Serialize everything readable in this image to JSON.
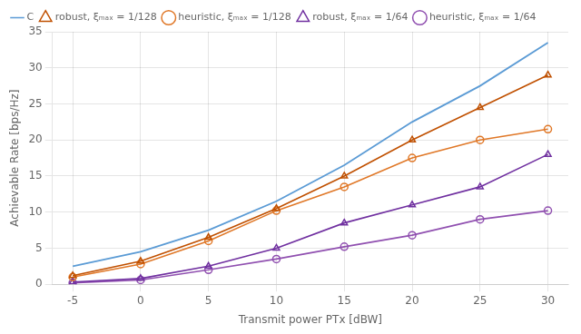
{
  "chart_data": {
    "type": "line",
    "xlabel": "Transmit power PTx [dBW]",
    "ylabel": "Achievable Rate [bps/Hz]",
    "x": [
      -5,
      0,
      5,
      10,
      15,
      20,
      25,
      30
    ],
    "series": [
      {
        "name": "C",
        "color": "#5B9BD5",
        "values": [
          2.5,
          4.5,
          7.5,
          11.5,
          16.5,
          22.5,
          27.5,
          33.5
        ]
      },
      {
        "name": "robust, ξₘₐₓ = 1/128",
        "color": "#C05000",
        "marker": "triangle",
        "values": [
          1.2,
          3.2,
          6.5,
          10.5,
          15.0,
          20.0,
          24.5,
          29.0
        ]
      },
      {
        "name": "heuristic, ξₘₐₓ = 1/128",
        "color": "#E07828",
        "marker": "circle",
        "values": [
          1.0,
          2.8,
          6.0,
          10.2,
          13.5,
          17.5,
          20.0,
          21.5
        ]
      },
      {
        "name": "robust, ξₘₐₓ = 1/64",
        "color": "#7030A0",
        "marker": "triangle",
        "values": [
          0.3,
          0.8,
          2.5,
          5.0,
          8.5,
          11.0,
          13.5,
          18.0
        ]
      },
      {
        "name": "heuristic, ξₘₐₓ = 1/64",
        "color": "#9050B0",
        "marker": "circle",
        "values": [
          0.2,
          0.6,
          2.0,
          3.5,
          5.2,
          6.8,
          9.0,
          10.2
        ]
      }
    ],
    "xlim": [
      -6.5,
      31.5
    ],
    "ylim": [
      0,
      35
    ],
    "xticks": [
      -5,
      0,
      5,
      10,
      15,
      20,
      25,
      30
    ],
    "yticks": [
      0,
      5,
      10,
      15,
      20,
      25,
      30,
      35
    ],
    "grid": true,
    "legend": "upper left"
  }
}
